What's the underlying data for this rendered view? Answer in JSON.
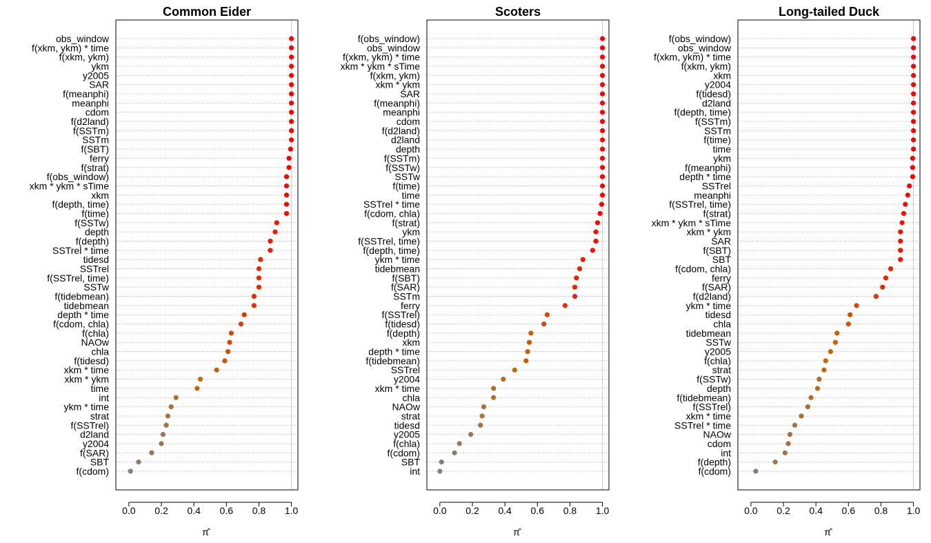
{
  "chart_data": [
    {
      "type": "scatter",
      "title": "Common Eider",
      "xlabel": "π̂",
      "xlim": [
        -0.08,
        1.04
      ],
      "xticks": [
        0.0,
        0.2,
        0.4,
        0.6,
        0.8,
        1.0
      ],
      "xtick_labels": [
        "0.0",
        "0.2",
        "0.4",
        "0.6",
        "0.8",
        "1.0"
      ],
      "reference_line_x": 1.0,
      "grid": "dotted horizontal guide lines",
      "color_scale": {
        "low": "#808080",
        "mid": "#c86400",
        "high": "#ff0000"
      },
      "categories": [
        "obs_window",
        "f(xkm, ykm) * time",
        "f(xkm, ykm)",
        "ykm",
        "y2005",
        "SAR",
        "f(meanphi)",
        "meanphi",
        "cdom",
        "f(d2land)",
        "f(SSTm)",
        "SSTm",
        "f(SBT)",
        "ferry",
        "f(strat)",
        "f(obs_window)",
        "xkm * ykm * sTime",
        "xkm",
        "f(depth, time)",
        "f(time)",
        "f(SSTw)",
        "depth",
        "f(depth)",
        "SSTrel * time",
        "tidesd",
        "SSTrel",
        "f(SSTrel, time)",
        "SSTw",
        "f(tidebmean)",
        "tidebmean",
        "depth * time",
        "f(cdom, chla)",
        "f(chla)",
        "NAOw",
        "chla",
        "f(tidesd)",
        "xkm * time",
        "xkm * ykm",
        "time",
        "int",
        "ykm * time",
        "strat",
        "f(SSTrel)",
        "d2land",
        "y2004",
        "f(SAR)",
        "SBT",
        "f(cdom)"
      ],
      "values": [
        1.0,
        1.0,
        1.0,
        1.0,
        1.0,
        1.0,
        1.0,
        1.0,
        1.0,
        1.0,
        1.0,
        1.0,
        0.995,
        0.985,
        0.985,
        0.97,
        0.97,
        0.97,
        0.97,
        0.97,
        0.91,
        0.9,
        0.87,
        0.87,
        0.81,
        0.8,
        0.8,
        0.8,
        0.77,
        0.77,
        0.71,
        0.69,
        0.63,
        0.62,
        0.61,
        0.59,
        0.54,
        0.44,
        0.42,
        0.29,
        0.26,
        0.24,
        0.23,
        0.21,
        0.2,
        0.14,
        0.06,
        0.01
      ]
    },
    {
      "type": "scatter",
      "title": "Scoters",
      "xlabel": "π̂",
      "xlim": [
        -0.08,
        1.04
      ],
      "xticks": [
        0.0,
        0.2,
        0.4,
        0.6,
        0.8,
        1.0
      ],
      "xtick_labels": [
        "0.0",
        "0.2",
        "0.4",
        "0.6",
        "0.8",
        "1.0"
      ],
      "reference_line_x": 1.0,
      "grid": "dotted horizontal guide lines",
      "color_scale": {
        "low": "#808080",
        "mid": "#c86400",
        "high": "#ff0000"
      },
      "categories": [
        "f(obs_window)",
        "obs_window",
        "f(xkm, ykm) * time",
        "xkm * ykm * sTime",
        "f(xkm, ykm)",
        "xkm * ykm",
        "SAR",
        "f(meanphi)",
        "meanphi",
        "cdom",
        "f(d2land)",
        "d2land",
        "depth",
        "f(SSTm)",
        "f(SSTw)",
        "SSTw",
        "f(time)",
        "time",
        "SSTrel * time",
        "f(cdom, chla)",
        "f(strat)",
        "ykm",
        "f(SSTrel, time)",
        "f(depth, time)",
        "ykm * time",
        "tidebmean",
        "f(SBT)",
        "f(SAR)",
        "SSTm",
        "ferry",
        "f(SSTrel)",
        "f(tidesd)",
        "f(depth)",
        "xkm",
        "depth * time",
        "f(tidebmean)",
        "SSTrel",
        "y2004",
        "xkm * time",
        "chla",
        "NAOw",
        "strat",
        "tidesd",
        "y2005",
        "f(chla)",
        "f(cdom)",
        "SBT",
        "int"
      ],
      "values": [
        1.0,
        1.0,
        1.0,
        1.0,
        1.0,
        1.0,
        1.0,
        1.0,
        1.0,
        1.0,
        1.0,
        1.0,
        1.0,
        1.0,
        1.0,
        1.0,
        1.0,
        1.0,
        0.995,
        0.985,
        0.97,
        0.96,
        0.96,
        0.94,
        0.88,
        0.86,
        0.84,
        0.83,
        0.83,
        0.77,
        0.66,
        0.64,
        0.56,
        0.55,
        0.54,
        0.53,
        0.46,
        0.39,
        0.33,
        0.33,
        0.27,
        0.26,
        0.25,
        0.19,
        0.12,
        0.09,
        0.01,
        0.0
      ]
    },
    {
      "type": "scatter",
      "title": "Long-tailed Duck",
      "xlabel": "π̂",
      "xlim": [
        -0.08,
        1.04
      ],
      "xticks": [
        0.0,
        0.2,
        0.4,
        0.6,
        0.8,
        1.0
      ],
      "xtick_labels": [
        "0.0",
        "0.2",
        "0.4",
        "0.6",
        "0.8",
        "1.0"
      ],
      "reference_line_x": 1.0,
      "grid": "dotted horizontal guide lines",
      "color_scale": {
        "low": "#808080",
        "mid": "#c86400",
        "high": "#ff0000"
      },
      "categories": [
        "f(obs_window)",
        "obs_window",
        "f(xkm, ykm) * time",
        "f(xkm, ykm)",
        "xkm",
        "y2004",
        "f(tidesd)",
        "d2land",
        "f(depth, time)",
        "f(SSTm)",
        "SSTm",
        "f(time)",
        "time",
        "ykm",
        "f(meanphi)",
        "depth * time",
        "SSTrel",
        "meanphi",
        "f(SSTrel, time)",
        "f(strat)",
        "xkm * ykm * sTime",
        "xkm * ykm",
        "SAR",
        "f(SBT)",
        "SBT",
        "f(cdom, chla)",
        "ferry",
        "f(SAR)",
        "f(d2land)",
        "ykm * time",
        "tidesd",
        "chla",
        "tidebmean",
        "SSTw",
        "y2005",
        "f(chla)",
        "strat",
        "f(SSTw)",
        "depth",
        "f(tidebmean)",
        "f(SSTrel)",
        "xkm * time",
        "SSTrel * time",
        "NAOw",
        "cdom",
        "int",
        "f(depth)",
        "f(cdom)"
      ],
      "values": [
        1.0,
        1.0,
        1.0,
        1.0,
        1.0,
        1.0,
        1.0,
        1.0,
        1.0,
        1.0,
        1.0,
        1.0,
        1.0,
        0.995,
        0.995,
        0.995,
        0.975,
        0.965,
        0.95,
        0.94,
        0.93,
        0.92,
        0.92,
        0.92,
        0.92,
        0.86,
        0.83,
        0.81,
        0.77,
        0.65,
        0.61,
        0.6,
        0.53,
        0.52,
        0.49,
        0.46,
        0.45,
        0.42,
        0.41,
        0.37,
        0.35,
        0.31,
        0.27,
        0.24,
        0.23,
        0.21,
        0.15,
        0.03
      ]
    }
  ]
}
